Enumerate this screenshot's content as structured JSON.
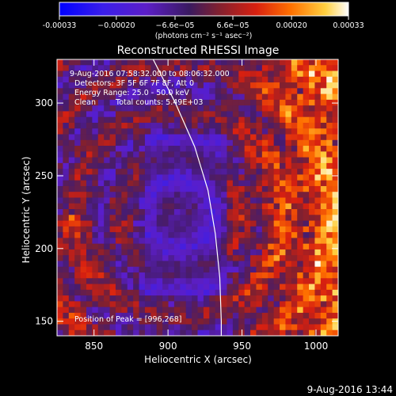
{
  "chart_data": {
    "type": "heatmap",
    "title": "Reconstructed RHESSI Image",
    "xlabel": "Heliocentric X (arcsec)",
    "ylabel": "Heliocentric Y (arcsec)",
    "xlim": [
      825,
      1015
    ],
    "ylim": [
      140,
      330
    ],
    "x_ticks": [
      850,
      900,
      950,
      1000
    ],
    "y_ticks": [
      150,
      200,
      250,
      300
    ],
    "colorbar": {
      "vmin": -0.00033,
      "vmax": 0.00033,
      "tick_values": [
        -0.00033,
        -0.0002,
        -6.6e-05,
        6.6e-05,
        0.0002,
        0.00033
      ],
      "tick_labels": [
        "-0.00033",
        "−0.00020",
        "−6.6e−05",
        "6.6e−05",
        "0.00020",
        "0.00033"
      ],
      "unit_label": "(photons cm⁻² s⁻¹ asec⁻²)",
      "colors": [
        "#0000ff",
        "#5a1ecc",
        "#402070",
        "#7a2a6a",
        "#c02020",
        "#ff6000",
        "#ffc020",
        "#ffffff"
      ]
    },
    "annotations": {
      "time_range": "9-Aug-2016 07:58:32.000 to 08:06:32.000",
      "detectors": "Detectors: 3F 5F 6F 7F 8F, Att 0",
      "energy_range": "Energy Range: 25.0 - 50.0 keV",
      "method": "Clean",
      "total_counts": "Total counts: 5.49E+03",
      "peak": "Position of Peak = [996,268]"
    },
    "limb_curve": [
      [
        890,
        330
      ],
      [
        905,
        300
      ],
      [
        918,
        270
      ],
      [
        927,
        240
      ],
      [
        932,
        210
      ],
      [
        935,
        180
      ],
      [
        936,
        150
      ],
      [
        936,
        140
      ]
    ]
  },
  "footer": {
    "timestamp": "9-Aug-2016 13:44"
  }
}
